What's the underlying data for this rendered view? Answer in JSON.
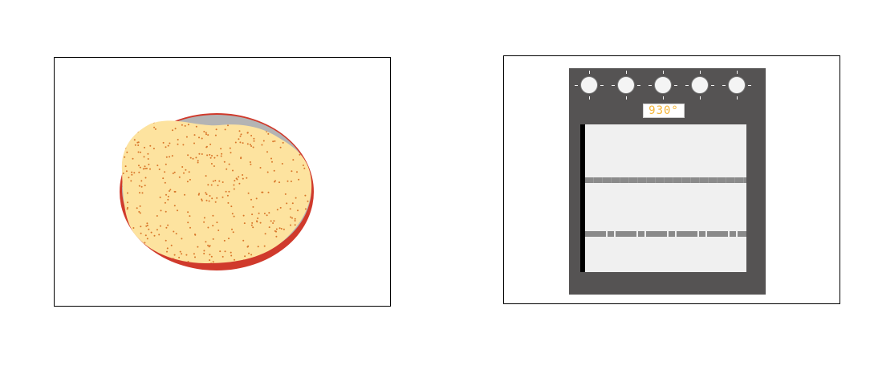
{
  "scene": {
    "left_panel": "bowl",
    "right_panel": "oven"
  },
  "bowl": {
    "rim_color": "#d03a2c",
    "inner_color": "#b4b4b4",
    "dough_color": "#fde39f",
    "speck_color": "#d8762a"
  },
  "oven": {
    "body_color": "#555353",
    "window_color": "#f0f0f0",
    "rack_color": "#8a8a8a",
    "display_color": "#f5b63a",
    "temperature_display": "930°",
    "knob_count": 5,
    "knobs": [
      "knob-1",
      "knob-2",
      "knob-3",
      "knob-4",
      "knob-5"
    ],
    "racks": [
      "upper-rack",
      "lower-rack"
    ]
  }
}
